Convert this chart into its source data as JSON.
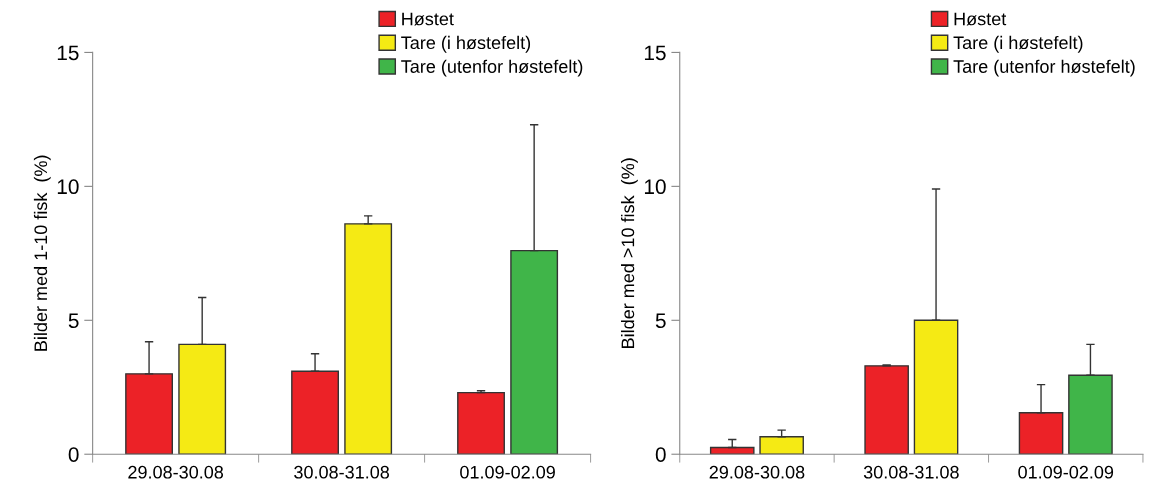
{
  "chart_data": [
    {
      "type": "bar",
      "ylabel": "Bilder med 1-10 fisk  (%)",
      "categories": [
        "29.08-30.08",
        "30.08-31.08",
        "01.09-02.09"
      ],
      "series": [
        {
          "name": "Høstet",
          "color": "#ec2227",
          "values": [
            3.0,
            3.1,
            2.3
          ],
          "errors": [
            [
              3.0,
              4.2
            ],
            [
              3.1,
              3.75
            ],
            [
              2.3,
              2.37
            ]
          ]
        },
        {
          "name": "Tare (i høstefelt)",
          "color": "#f5ea14",
          "values": [
            4.1,
            8.6,
            null
          ],
          "errors": [
            [
              4.1,
              5.85
            ],
            [
              8.6,
              8.9
            ],
            null
          ]
        },
        {
          "name": "Tare (utenfor høstefelt)",
          "color": "#40b549",
          "values": [
            null,
            null,
            7.6
          ],
          "errors": [
            null,
            null,
            [
              7.6,
              12.3
            ]
          ]
        }
      ],
      "ylim": [
        0,
        15
      ],
      "yticks": [
        0,
        5,
        10,
        15
      ],
      "grid": false,
      "legend": "top right"
    },
    {
      "type": "bar",
      "ylabel": "Bilder med >10 fisk  (%)",
      "categories": [
        "29.08-30.08",
        "30.08-31.08",
        "01.09-02.09"
      ],
      "series": [
        {
          "name": "Høstet",
          "color": "#ec2227",
          "values": [
            0.25,
            3.3,
            1.55
          ],
          "errors": [
            [
              0.25,
              0.55
            ],
            [
              3.3,
              3.33
            ],
            [
              1.55,
              2.6
            ]
          ]
        },
        {
          "name": "Tare (i høstefelt)",
          "color": "#f5ea14",
          "values": [
            0.65,
            5.0,
            null
          ],
          "errors": [
            [
              0.65,
              0.9
            ],
            [
              5.0,
              9.9
            ],
            null
          ]
        },
        {
          "name": "Tare (utenfor høstefelt)",
          "color": "#40b549",
          "values": [
            null,
            null,
            2.95
          ],
          "errors": [
            null,
            null,
            [
              2.95,
              4.1
            ]
          ]
        }
      ],
      "ylim": [
        0,
        15
      ],
      "yticks": [
        0,
        5,
        10,
        15
      ],
      "grid": false,
      "legend": "top right"
    }
  ]
}
